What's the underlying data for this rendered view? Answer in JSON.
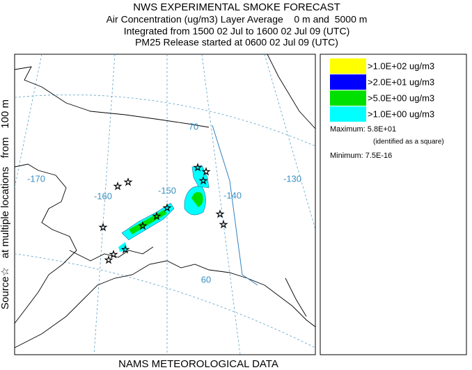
{
  "header": {
    "title": "NWS EXPERIMENTAL SMOKE FORECAST",
    "lines": [
      "Air Concentration (ug/m3) Layer Average    0 m and  5000 m",
      "Integrated from 1500 02 Jul to 1600 02 Jul 09 (UTC)",
      "PM25 Release started at 0600 02 Jul 09 (UTC)"
    ]
  },
  "side_label": "Source☆   at multiple locations   from   100 m",
  "footer": "NAMS METEOROLOGICAL DATA",
  "legend": {
    "items": [
      {
        "label": ">1.0E+02 ug/m3",
        "color": "#ffff00"
      },
      {
        "label": ">2.0E+01 ug/m3",
        "color": "#0000ff"
      },
      {
        "label": ">5.0E+00 ug/m3",
        "color": "#00e000"
      },
      {
        "label": ">1.0E+00 ug/m3",
        "color": "#00ffff"
      }
    ],
    "maximum": "Maximum: 5.8E+01",
    "maximum_note": "(identified as a square)",
    "minimum": "Minimum: 7.5E-16"
  },
  "map": {
    "graticule_labels": [
      "-170",
      "-160",
      "-150",
      "-140",
      "-130",
      "70",
      "60"
    ]
  }
}
